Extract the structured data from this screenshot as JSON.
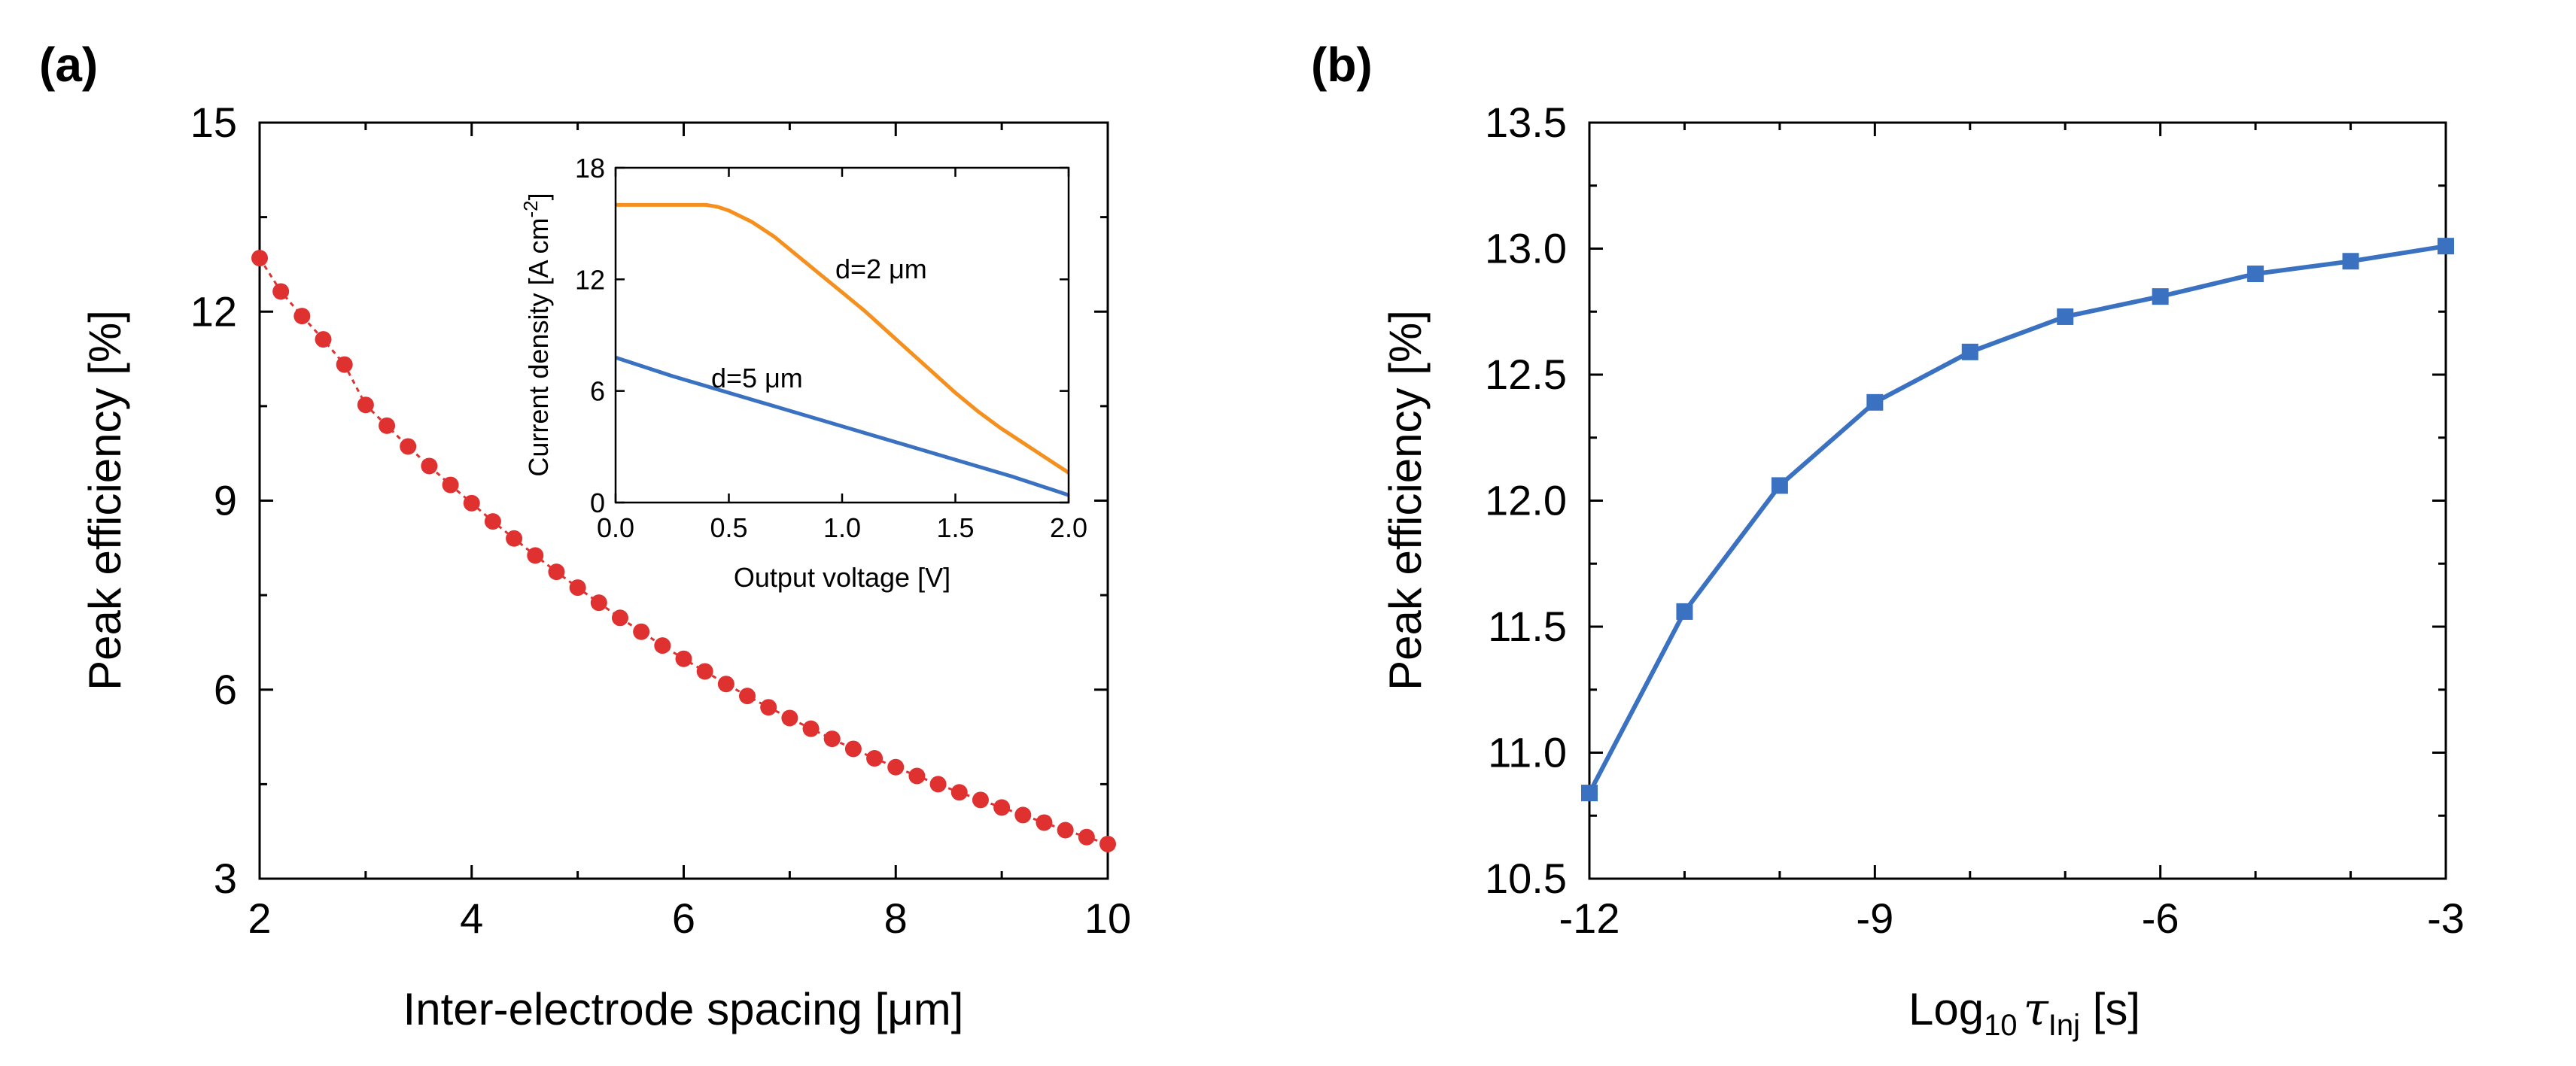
{
  "chart_data": [
    {
      "panel_label": "(a)",
      "type": "scatter",
      "title": "",
      "xlabel": "Inter-electrode spacing [μm]",
      "ylabel": "Peak efficiency [%]",
      "xlim": [
        2,
        10
      ],
      "ylim": [
        3,
        15
      ],
      "xticks": [
        2,
        4,
        6,
        8,
        10
      ],
      "yticks": [
        3,
        6,
        9,
        12,
        15
      ],
      "xtick_labels": [
        "2",
        "4",
        "6",
        "8",
        "10"
      ],
      "ytick_labels": [
        "3",
        "6",
        "9",
        "12",
        "15"
      ],
      "marker_color": "#e03131",
      "x": [
        2.0,
        2.2,
        2.4,
        2.6,
        2.8,
        3.0,
        3.2,
        3.4,
        3.6,
        3.8,
        4.0,
        4.2,
        4.4,
        4.6,
        4.8,
        5.0,
        5.2,
        5.4,
        5.6,
        5.8,
        6.0,
        6.2,
        6.4,
        6.6,
        6.8,
        7.0,
        7.2,
        7.4,
        7.6,
        7.8,
        8.0,
        8.2,
        8.4,
        8.6,
        8.8,
        9.0,
        9.2,
        9.4,
        9.6,
        9.8,
        10.0
      ],
      "y": [
        12.85,
        12.32,
        11.93,
        11.56,
        11.16,
        10.52,
        10.19,
        9.86,
        9.55,
        9.25,
        8.96,
        8.67,
        8.4,
        8.13,
        7.87,
        7.62,
        7.38,
        7.14,
        6.92,
        6.7,
        6.49,
        6.29,
        6.09,
        5.9,
        5.72,
        5.55,
        5.38,
        5.22,
        5.06,
        4.91,
        4.77,
        4.63,
        4.5,
        4.37,
        4.25,
        4.13,
        4.01,
        3.89,
        3.77,
        3.66,
        3.55
      ],
      "inset": {
        "type": "line",
        "xlabel": "Output voltage [V]",
        "ylabel": "Current density [A cm",
        "ylabel_sup": "-2",
        "ylabel_end": "]",
        "xlim": [
          0,
          2
        ],
        "ylim": [
          0,
          18
        ],
        "xticks": [
          0.0,
          0.5,
          1.0,
          1.5,
          2.0
        ],
        "yticks": [
          0,
          6,
          12,
          18
        ],
        "xtick_labels": [
          "0.0",
          "0.5",
          "1.0",
          "1.5",
          "2.0"
        ],
        "ytick_labels": [
          "0",
          "6",
          "12",
          "18"
        ],
        "series": [
          {
            "name": "d=2 μm",
            "color": "#f5901e",
            "x": [
              0.0,
              0.1,
              0.2,
              0.3,
              0.4,
              0.45,
              0.5,
              0.6,
              0.7,
              0.8,
              0.9,
              1.0,
              1.1,
              1.2,
              1.3,
              1.4,
              1.5,
              1.6,
              1.7,
              1.8,
              1.9,
              2.0
            ],
            "y": [
              16.0,
              16.0,
              16.0,
              16.0,
              16.0,
              15.9,
              15.7,
              15.1,
              14.3,
              13.3,
              12.3,
              11.3,
              10.3,
              9.2,
              8.1,
              7.0,
              5.9,
              4.9,
              4.0,
              3.2,
              2.4,
              1.6
            ]
          },
          {
            "name": "d=5 μm",
            "color": "#3a71c1",
            "x": [
              0.0,
              0.25,
              0.5,
              0.75,
              1.0,
              1.25,
              1.5,
              1.75,
              2.0
            ],
            "y": [
              7.8,
              6.8,
              5.9,
              5.0,
              4.1,
              3.2,
              2.3,
              1.4,
              0.4
            ]
          }
        ],
        "annotations": [
          "d=2 μm",
          "d=5 μm"
        ]
      }
    },
    {
      "panel_label": "(b)",
      "type": "line",
      "title": "",
      "xlabel_main": "Log",
      "xlabel_sub": "10",
      "xlabel_tau": "τ",
      "xlabel_tau_sub": "Inj",
      "xlabel_end": " [s]",
      "ylabel": "Peak efficiency [%]",
      "xlim": [
        -12,
        -3
      ],
      "ylim": [
        10.5,
        13.5
      ],
      "xticks": [
        -12,
        -9,
        -6,
        -3
      ],
      "yticks": [
        10.5,
        11.0,
        11.5,
        12.0,
        12.5,
        13.0,
        13.5
      ],
      "xtick_labels": [
        "-12",
        "-9",
        "-6",
        "-3"
      ],
      "ytick_labels": [
        "10.5",
        "11.0",
        "11.5",
        "12.0",
        "12.5",
        "13.0",
        "13.5"
      ],
      "color": "#3a71c1",
      "x": [
        -12,
        -11,
        -10,
        -9,
        -8,
        -7,
        -6,
        -5,
        -4,
        -3
      ],
      "y": [
        10.84,
        11.56,
        12.06,
        12.39,
        12.59,
        12.73,
        12.81,
        12.9,
        12.95,
        13.01
      ]
    }
  ]
}
